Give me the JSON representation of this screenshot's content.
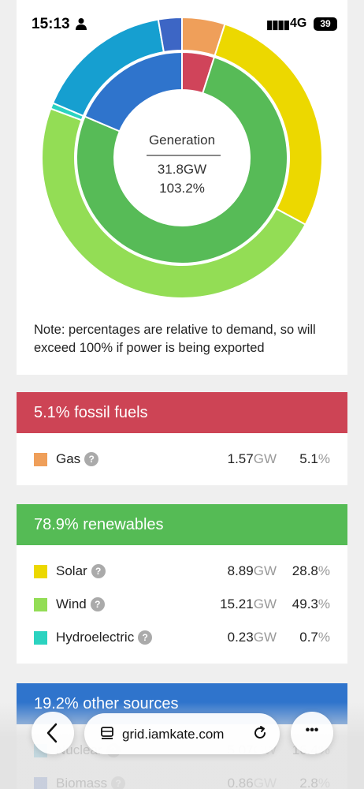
{
  "status_bar": {
    "time": "15:13",
    "network": "4G",
    "battery": "39",
    "signal": "▮▮▮▮"
  },
  "chart": {
    "center_title": "Generation",
    "center_gw": "31.8GW",
    "center_pct": "103.2%",
    "note": "Note: percentages are relative to demand, so will exceed 100% if power is being exported"
  },
  "chart_data": {
    "type": "pie",
    "title": "Generation",
    "inner_ring": [
      {
        "name": "fossil fuels",
        "value": 5.1,
        "color": "#d0445a"
      },
      {
        "name": "renewables",
        "value": 78.9,
        "color": "#57bb57"
      },
      {
        "name": "other sources",
        "value": 19.2,
        "color": "#2f74cc"
      }
    ],
    "outer_ring": [
      {
        "name": "Gas",
        "value": 5.1,
        "color": "#ef9f5a"
      },
      {
        "name": "Solar",
        "value": 28.8,
        "color": "#ecd800"
      },
      {
        "name": "Wind",
        "value": 49.3,
        "color": "#93dd55"
      },
      {
        "name": "Hydroelectric",
        "value": 0.7,
        "color": "#2bd3c0"
      },
      {
        "name": "Nuclear",
        "value": 16.4,
        "color": "#169fd0"
      },
      {
        "name": "Biomass",
        "value": 2.8,
        "color": "#3d66c5"
      }
    ]
  },
  "fossil": {
    "heading": "5.1% fossil fuels",
    "color": "#cd4455",
    "rows": [
      {
        "label": "Gas",
        "gw": "1.57",
        "pct": "5.1",
        "color": "#ef9f5a"
      }
    ]
  },
  "renewables": {
    "heading": "78.9% renewables",
    "color": "#55bb55",
    "rows": [
      {
        "label": "Solar",
        "gw": "8.89",
        "pct": "28.8",
        "color": "#ecd800"
      },
      {
        "label": "Wind",
        "gw": "15.21",
        "pct": "49.3",
        "color": "#93dd55"
      },
      {
        "label": "Hydroelectric",
        "gw": "0.23",
        "pct": "0.7",
        "color": "#2bd3c0"
      }
    ]
  },
  "other": {
    "heading": "19.2% other sources",
    "color": "#2f74cc",
    "rows": [
      {
        "label": "Nuclear",
        "gw": "5.07",
        "pct": "16.4",
        "color": "#169fd0"
      },
      {
        "label": "Biomass",
        "gw": "0.86",
        "pct": "2.8",
        "color": "#3d66c5"
      }
    ]
  },
  "units": {
    "gw": "GW",
    "pct": "%",
    "help": "?"
  },
  "browser": {
    "url": "grid.iamkate.com",
    "more": "•••"
  }
}
